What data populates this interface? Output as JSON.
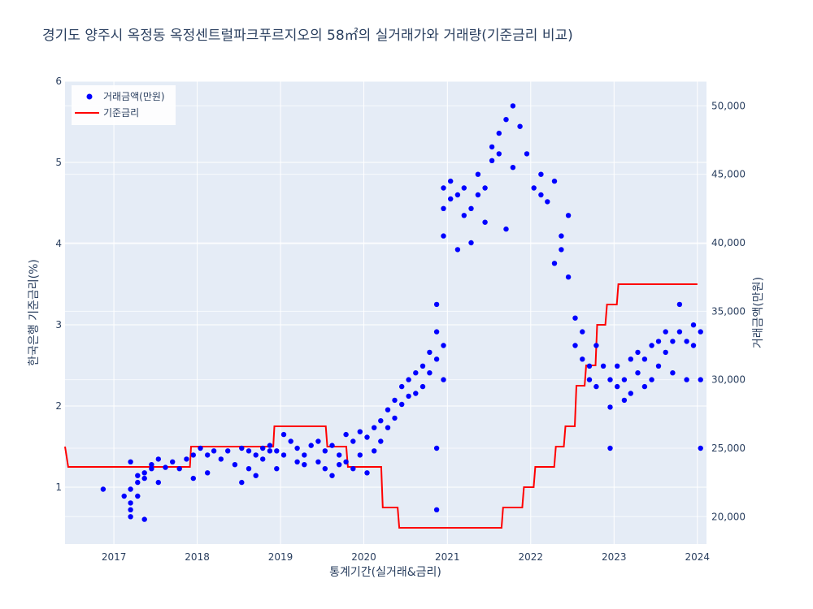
{
  "chart_data": {
    "type": "scatter",
    "title": "경기도 양주시 옥정동 옥정센트럴파크푸르지오의 58㎡의 실거래가와 거래량(기준금리 비교)",
    "xlabel": "통계기간(실거래&금리)",
    "ylabel_left": "한국은행 기준금리(%)",
    "ylabel_right": "거래금액(만원)",
    "x_tick_labels": [
      "2017",
      "2018",
      "2019",
      "2020",
      "2021",
      "2022",
      "2023",
      "2024"
    ],
    "y_left_tick_labels": [
      "1",
      "2",
      "3",
      "4",
      "5",
      "6"
    ],
    "y_right_tick_labels": [
      "20,000",
      "25,000",
      "30,000",
      "35,000",
      "40,000",
      "45,000",
      "50,000"
    ],
    "xlim": [
      "2016-06-01",
      "2024-02-10"
    ],
    "ylim_left": [
      0.3,
      6
    ],
    "ylim_right": [
      18000,
      51800
    ],
    "grid": true,
    "legend_position": "top-left",
    "colors": {
      "plot_bg": "#e5ecf6",
      "grid": "#ffffff",
      "transactions": "#0000ff",
      "rate": "#ff0000"
    },
    "series": [
      {
        "name": "거래금액(만원)",
        "axis": "right",
        "mode": "markers",
        "points": [
          [
            "2016-11",
            22000
          ],
          [
            "2017-02",
            21500
          ],
          [
            "2017-03",
            21000
          ],
          [
            "2017-03",
            20500
          ],
          [
            "2017-03",
            20000
          ],
          [
            "2017-03",
            24000
          ],
          [
            "2017-03",
            22000
          ],
          [
            "2017-04",
            21500
          ],
          [
            "2017-04",
            22500
          ],
          [
            "2017-04",
            23000
          ],
          [
            "2017-05",
            19800
          ],
          [
            "2017-05",
            22800
          ],
          [
            "2017-05",
            23200
          ],
          [
            "2017-06",
            23500
          ],
          [
            "2017-06",
            23800
          ],
          [
            "2017-07",
            22500
          ],
          [
            "2017-07",
            24200
          ],
          [
            "2017-08",
            23600
          ],
          [
            "2017-09",
            24000
          ],
          [
            "2017-10",
            23500
          ],
          [
            "2017-11",
            24200
          ],
          [
            "2017-12",
            22800
          ],
          [
            "2017-12",
            24500
          ],
          [
            "2018-01",
            25000
          ],
          [
            "2018-02",
            24500
          ],
          [
            "2018-02",
            23200
          ],
          [
            "2018-03",
            24800
          ],
          [
            "2018-04",
            24200
          ],
          [
            "2018-05",
            24800
          ],
          [
            "2018-06",
            23800
          ],
          [
            "2018-07",
            25000
          ],
          [
            "2018-07",
            22500
          ],
          [
            "2018-08",
            23500
          ],
          [
            "2018-08",
            24800
          ],
          [
            "2018-09",
            24500
          ],
          [
            "2018-09",
            23000
          ],
          [
            "2018-10",
            25000
          ],
          [
            "2018-10",
            24200
          ],
          [
            "2018-11",
            24800
          ],
          [
            "2018-11",
            25200
          ],
          [
            "2018-12",
            23500
          ],
          [
            "2018-12",
            24800
          ],
          [
            "2019-01",
            26000
          ],
          [
            "2019-01",
            24500
          ],
          [
            "2019-02",
            25500
          ],
          [
            "2019-03",
            24000
          ],
          [
            "2019-03",
            25000
          ],
          [
            "2019-04",
            23800
          ],
          [
            "2019-04",
            24500
          ],
          [
            "2019-05",
            25200
          ],
          [
            "2019-06",
            24000
          ],
          [
            "2019-06",
            25500
          ],
          [
            "2019-07",
            23500
          ],
          [
            "2019-07",
            24800
          ],
          [
            "2019-08",
            23000
          ],
          [
            "2019-08",
            25200
          ],
          [
            "2019-09",
            24500
          ],
          [
            "2019-09",
            23800
          ],
          [
            "2019-10",
            24000
          ],
          [
            "2019-10",
            26000
          ],
          [
            "2019-11",
            25500
          ],
          [
            "2019-11",
            23500
          ],
          [
            "2019-12",
            24500
          ],
          [
            "2019-12",
            26200
          ],
          [
            "2020-01",
            25800
          ],
          [
            "2020-01",
            23200
          ],
          [
            "2020-02",
            26500
          ],
          [
            "2020-02",
            24800
          ],
          [
            "2020-03",
            27000
          ],
          [
            "2020-03",
            25500
          ],
          [
            "2020-04",
            27800
          ],
          [
            "2020-04",
            26500
          ],
          [
            "2020-05",
            28500
          ],
          [
            "2020-05",
            27200
          ],
          [
            "2020-06",
            29500
          ],
          [
            "2020-06",
            28200
          ],
          [
            "2020-07",
            30000
          ],
          [
            "2020-07",
            28800
          ],
          [
            "2020-08",
            30500
          ],
          [
            "2020-08",
            29000
          ],
          [
            "2020-09",
            31000
          ],
          [
            "2020-09",
            29500
          ],
          [
            "2020-10",
            32000
          ],
          [
            "2020-10",
            30500
          ],
          [
            "2020-11",
            33500
          ],
          [
            "2020-11",
            31500
          ],
          [
            "2020-11",
            35500
          ],
          [
            "2020-11",
            25000
          ],
          [
            "2020-11",
            20500
          ],
          [
            "2020-12",
            32500
          ],
          [
            "2020-12",
            30000
          ],
          [
            "2020-12",
            40500
          ],
          [
            "2020-12",
            42500
          ],
          [
            "2020-12",
            44000
          ],
          [
            "2021-01",
            44500
          ],
          [
            "2021-01",
            43200
          ],
          [
            "2021-02",
            43500
          ],
          [
            "2021-02",
            39500
          ],
          [
            "2021-03",
            42000
          ],
          [
            "2021-03",
            44000
          ],
          [
            "2021-04",
            42500
          ],
          [
            "2021-04",
            40000
          ],
          [
            "2021-05",
            43500
          ],
          [
            "2021-05",
            45000
          ],
          [
            "2021-06",
            41500
          ],
          [
            "2021-06",
            44000
          ],
          [
            "2021-07",
            47000
          ],
          [
            "2021-07",
            46000
          ],
          [
            "2021-08",
            48000
          ],
          [
            "2021-08",
            46500
          ],
          [
            "2021-09",
            49000
          ],
          [
            "2021-09",
            41000
          ],
          [
            "2021-10",
            50000
          ],
          [
            "2021-10",
            45500
          ],
          [
            "2021-11",
            48500
          ],
          [
            "2021-12",
            46500
          ],
          [
            "2022-01",
            44000
          ],
          [
            "2022-02",
            45000
          ],
          [
            "2022-02",
            43500
          ],
          [
            "2022-03",
            43000
          ],
          [
            "2022-04",
            44500
          ],
          [
            "2022-04",
            38500
          ],
          [
            "2022-05",
            40500
          ],
          [
            "2022-05",
            39500
          ],
          [
            "2022-06",
            37500
          ],
          [
            "2022-06",
            42000
          ],
          [
            "2022-07",
            32500
          ],
          [
            "2022-07",
            34500
          ],
          [
            "2022-08",
            33500
          ],
          [
            "2022-08",
            31500
          ],
          [
            "2022-09",
            30000
          ],
          [
            "2022-09",
            31000
          ],
          [
            "2022-10",
            32500
          ],
          [
            "2022-10",
            29500
          ],
          [
            "2022-11",
            31000
          ],
          [
            "2022-12",
            30000
          ],
          [
            "2022-12",
            28000
          ],
          [
            "2022-12",
            25000
          ],
          [
            "2023-01",
            29500
          ],
          [
            "2023-01",
            31000
          ],
          [
            "2023-02",
            28500
          ],
          [
            "2023-02",
            30000
          ],
          [
            "2023-03",
            31500
          ],
          [
            "2023-03",
            29000
          ],
          [
            "2023-04",
            30500
          ],
          [
            "2023-04",
            32000
          ],
          [
            "2023-05",
            29500
          ],
          [
            "2023-05",
            31500
          ],
          [
            "2023-06",
            30000
          ],
          [
            "2023-06",
            32500
          ],
          [
            "2023-07",
            31000
          ],
          [
            "2023-07",
            32800
          ],
          [
            "2023-08",
            33500
          ],
          [
            "2023-08",
            32000
          ],
          [
            "2023-09",
            30500
          ],
          [
            "2023-09",
            32800
          ],
          [
            "2023-10",
            35500
          ],
          [
            "2023-10",
            33500
          ],
          [
            "2023-11",
            32800
          ],
          [
            "2023-11",
            30000
          ],
          [
            "2023-12",
            34000
          ],
          [
            "2023-12",
            32500
          ],
          [
            "2024-01",
            33500
          ],
          [
            "2024-01",
            30000
          ],
          [
            "2024-01",
            25000
          ]
        ]
      },
      {
        "name": "기준금리",
        "axis": "left",
        "mode": "line",
        "points": [
          [
            "2016-06-01",
            1.5
          ],
          [
            "2016-06-15",
            1.25
          ],
          [
            "2017-11-30",
            1.25
          ],
          [
            "2017-12-05",
            1.5
          ],
          [
            "2018-11-30",
            1.5
          ],
          [
            "2018-12-05",
            1.75
          ],
          [
            "2019-07-18",
            1.75
          ],
          [
            "2019-07-25",
            1.5
          ],
          [
            "2019-10-16",
            1.5
          ],
          [
            "2019-10-23",
            1.25
          ],
          [
            "2020-03-17",
            1.25
          ],
          [
            "2020-03-24",
            0.75
          ],
          [
            "2020-05-28",
            0.75
          ],
          [
            "2020-06-04",
            0.5
          ],
          [
            "2021-08-26",
            0.5
          ],
          [
            "2021-09-02",
            0.75
          ],
          [
            "2021-11-25",
            0.75
          ],
          [
            "2021-12-02",
            1.0
          ],
          [
            "2022-01-14",
            1.0
          ],
          [
            "2022-01-21",
            1.25
          ],
          [
            "2022-04-14",
            1.25
          ],
          [
            "2022-04-21",
            1.5
          ],
          [
            "2022-05-26",
            1.5
          ],
          [
            "2022-06-02",
            1.75
          ],
          [
            "2022-07-13",
            1.75
          ],
          [
            "2022-07-20",
            2.25
          ],
          [
            "2022-08-25",
            2.25
          ],
          [
            "2022-09-01",
            2.5
          ],
          [
            "2022-10-12",
            2.5
          ],
          [
            "2022-10-19",
            3.0
          ],
          [
            "2022-11-24",
            3.0
          ],
          [
            "2022-12-01",
            3.25
          ],
          [
            "2023-01-13",
            3.25
          ],
          [
            "2023-01-20",
            3.5
          ],
          [
            "2024-01-01",
            3.5
          ]
        ]
      }
    ]
  }
}
